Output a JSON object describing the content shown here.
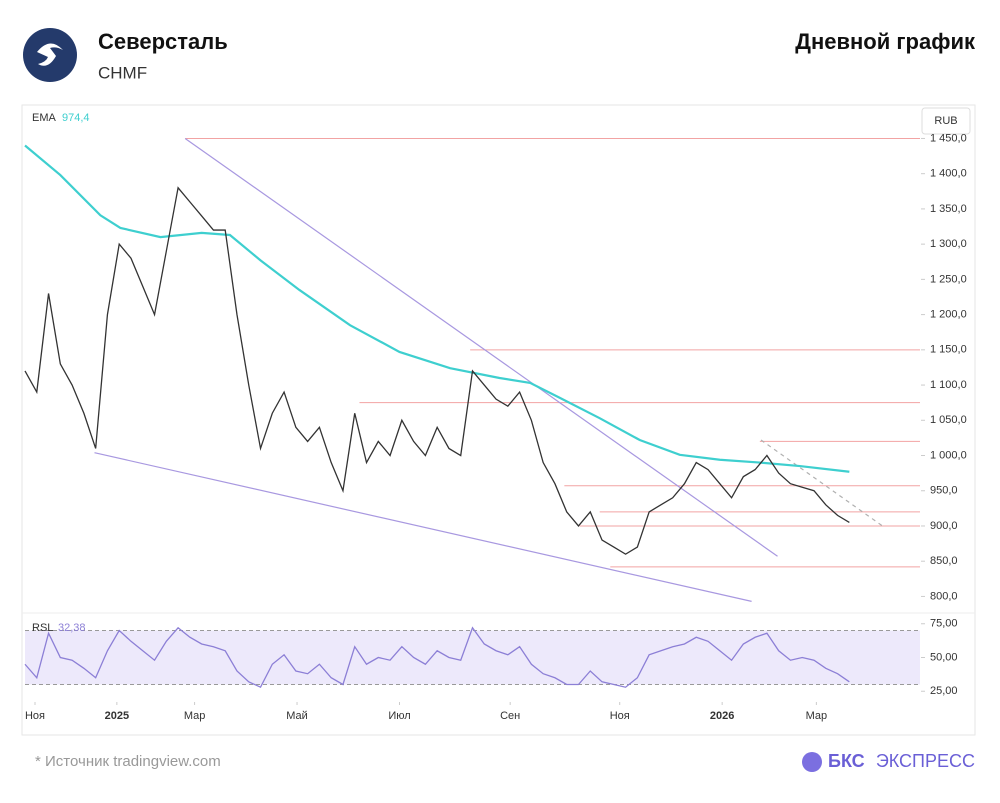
{
  "header": {
    "company": "Северсталь",
    "ticker": "CHMF",
    "chart_kind": "Дневной график"
  },
  "footer": {
    "source": "* Источник tradingview.com",
    "brand_bold": "БКС",
    "brand": "ЭКСПРЕСС"
  },
  "chart_data": {
    "type": "line",
    "currency": "RUB",
    "xlim": [
      0,
      76
    ],
    "xticks": [
      {
        "value": 0.85,
        "label": "Ноя"
      },
      {
        "value": 7.8,
        "label": "2025"
      },
      {
        "value": 14.4,
        "label": "Мар"
      },
      {
        "value": 23.1,
        "label": "Май"
      },
      {
        "value": 31.8,
        "label": "Июл"
      },
      {
        "value": 41.2,
        "label": "Сен"
      },
      {
        "value": 50.5,
        "label": "Ноя"
      },
      {
        "value": 59.2,
        "label": "2026"
      },
      {
        "value": 67.2,
        "label": "Мар"
      }
    ],
    "ylim": [
      785,
      1462
    ],
    "yticks": [
      {
        "value": 800,
        "label": "800,0"
      },
      {
        "value": 850,
        "label": "850,0"
      },
      {
        "value": 900,
        "label": "900,0"
      },
      {
        "value": 950,
        "label": "950,0"
      },
      {
        "value": 1000,
        "label": "1 000,0"
      },
      {
        "value": 1050,
        "label": "1 050,0"
      },
      {
        "value": 1100,
        "label": "1 100,0"
      },
      {
        "value": 1150,
        "label": "1 150,0"
      },
      {
        "value": 1200,
        "label": "1 200,0"
      },
      {
        "value": 1250,
        "label": "1 250,0"
      },
      {
        "value": 1300,
        "label": "1 300,0"
      },
      {
        "value": 1350,
        "label": "1 350,0"
      },
      {
        "value": 1400,
        "label": "1 400,0"
      },
      {
        "value": 1450,
        "label": "1 450,0"
      }
    ],
    "price": {
      "color": "#333333",
      "values": [
        1120,
        1090,
        1230,
        1130,
        1100,
        1060,
        1010,
        1200,
        1300,
        1280,
        1240,
        1200,
        1290,
        1380,
        1360,
        1340,
        1320,
        1320,
        1200,
        1100,
        1010,
        1060,
        1090,
        1040,
        1020,
        1040,
        990,
        950,
        1060,
        990,
        1020,
        1000,
        1050,
        1020,
        1000,
        1040,
        1010,
        1000,
        1120,
        1100,
        1080,
        1070,
        1090,
        1050,
        990,
        960,
        920,
        900,
        920,
        880,
        870,
        860,
        870,
        920,
        930,
        940,
        960,
        990,
        980,
        960,
        940,
        970,
        980,
        1000,
        975,
        960,
        955,
        950,
        930,
        915,
        905
      ]
    },
    "ema": {
      "name": "EMA",
      "last_label": "974,4",
      "color": "#3ecfcf",
      "x": [
        0,
        3,
        6.4,
        8.1,
        11.5,
        15,
        17.4,
        20,
        23.3,
        27.6,
        31.8,
        36.1,
        40.3,
        42.9,
        45.4,
        48.8,
        52.2,
        55.6,
        59,
        62.4,
        65.8,
        70
      ],
      "values": [
        1440,
        1398,
        1341,
        1323,
        1310,
        1316,
        1313,
        1277,
        1235,
        1185,
        1147,
        1124,
        1110,
        1103,
        1082,
        1053,
        1022,
        1001,
        994,
        990,
        985,
        977
      ]
    },
    "levels": {
      "color": "#f2a3a3",
      "items": [
        {
          "x": 13.6,
          "value": 1450
        },
        {
          "x": 37.8,
          "value": 1150
        },
        {
          "x": 28.4,
          "value": 1075
        },
        {
          "x": 62.4,
          "value": 1020
        },
        {
          "x": 45.8,
          "value": 957
        },
        {
          "x": 48.8,
          "value": 920
        },
        {
          "x": 47.1,
          "value": 900
        },
        {
          "x": 49.7,
          "value": 842
        }
      ]
    },
    "trendlines": [
      {
        "color": "#a898e0",
        "dashed": false,
        "x": [
          13.6,
          63.9
        ],
        "values": [
          1450,
          857
        ]
      },
      {
        "color": "#a898e0",
        "dashed": false,
        "x": [
          5.9,
          61.7
        ],
        "values": [
          1004,
          793
        ]
      },
      {
        "color": "#b0b0b0",
        "dashed": true,
        "x": [
          62.5,
          72.9
        ],
        "values": [
          1022,
          899
        ]
      }
    ],
    "rsi": {
      "name": "RSL",
      "last_label": "32,38",
      "color": "#8c7fd6",
      "ylim": [
        20,
        80
      ],
      "band": [
        30,
        70
      ],
      "yticks": [
        {
          "value": 25,
          "label": "25,00"
        },
        {
          "value": 50,
          "label": "50,00"
        },
        {
          "value": 75,
          "label": "75,00"
        }
      ],
      "values": [
        45,
        35,
        68,
        50,
        48,
        42,
        35,
        55,
        70,
        62,
        55,
        48,
        62,
        72,
        65,
        60,
        58,
        55,
        40,
        32,
        28,
        45,
        52,
        40,
        38,
        45,
        35,
        30,
        58,
        45,
        50,
        48,
        58,
        50,
        45,
        55,
        50,
        48,
        72,
        60,
        55,
        52,
        58,
        45,
        38,
        35,
        30,
        30,
        40,
        32,
        30,
        28,
        35,
        52,
        55,
        58,
        60,
        65,
        62,
        55,
        48,
        60,
        65,
        68,
        55,
        48,
        50,
        48,
        42,
        38,
        32
      ]
    }
  }
}
